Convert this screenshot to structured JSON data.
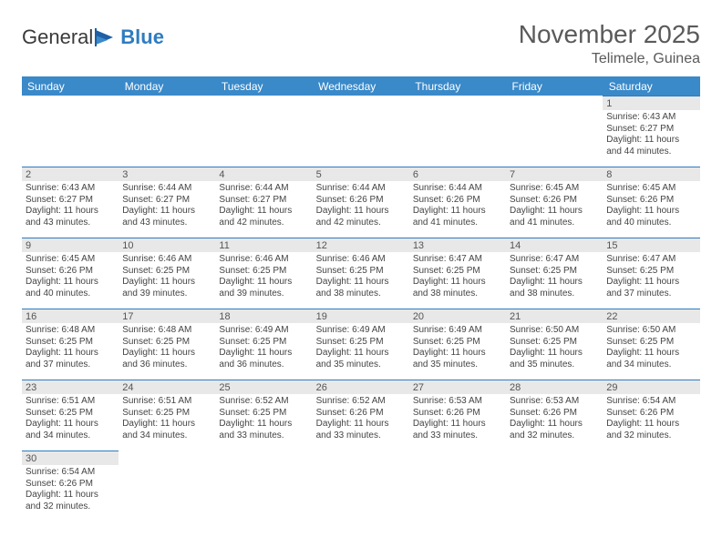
{
  "logo": {
    "word1": "General",
    "word2": "Blue"
  },
  "header": {
    "title": "November 2025",
    "location": "Telimele, Guinea"
  },
  "colors": {
    "header_bg": "#3a89c9",
    "header_text": "#ffffff",
    "daynum_bg": "#e8e8e8",
    "border": "#2f7cc0",
    "body_text": "#444444",
    "title_text": "#5a5a5a"
  },
  "weekdays": [
    "Sunday",
    "Monday",
    "Tuesday",
    "Wednesday",
    "Thursday",
    "Friday",
    "Saturday"
  ],
  "weeks": [
    [
      null,
      null,
      null,
      null,
      null,
      null,
      {
        "n": "1",
        "sr": "Sunrise: 6:43 AM",
        "ss": "Sunset: 6:27 PM",
        "dl1": "Daylight: 11 hours",
        "dl2": "and 44 minutes."
      }
    ],
    [
      {
        "n": "2",
        "sr": "Sunrise: 6:43 AM",
        "ss": "Sunset: 6:27 PM",
        "dl1": "Daylight: 11 hours",
        "dl2": "and 43 minutes."
      },
      {
        "n": "3",
        "sr": "Sunrise: 6:44 AM",
        "ss": "Sunset: 6:27 PM",
        "dl1": "Daylight: 11 hours",
        "dl2": "and 43 minutes."
      },
      {
        "n": "4",
        "sr": "Sunrise: 6:44 AM",
        "ss": "Sunset: 6:27 PM",
        "dl1": "Daylight: 11 hours",
        "dl2": "and 42 minutes."
      },
      {
        "n": "5",
        "sr": "Sunrise: 6:44 AM",
        "ss": "Sunset: 6:26 PM",
        "dl1": "Daylight: 11 hours",
        "dl2": "and 42 minutes."
      },
      {
        "n": "6",
        "sr": "Sunrise: 6:44 AM",
        "ss": "Sunset: 6:26 PM",
        "dl1": "Daylight: 11 hours",
        "dl2": "and 41 minutes."
      },
      {
        "n": "7",
        "sr": "Sunrise: 6:45 AM",
        "ss": "Sunset: 6:26 PM",
        "dl1": "Daylight: 11 hours",
        "dl2": "and 41 minutes."
      },
      {
        "n": "8",
        "sr": "Sunrise: 6:45 AM",
        "ss": "Sunset: 6:26 PM",
        "dl1": "Daylight: 11 hours",
        "dl2": "and 40 minutes."
      }
    ],
    [
      {
        "n": "9",
        "sr": "Sunrise: 6:45 AM",
        "ss": "Sunset: 6:26 PM",
        "dl1": "Daylight: 11 hours",
        "dl2": "and 40 minutes."
      },
      {
        "n": "10",
        "sr": "Sunrise: 6:46 AM",
        "ss": "Sunset: 6:25 PM",
        "dl1": "Daylight: 11 hours",
        "dl2": "and 39 minutes."
      },
      {
        "n": "11",
        "sr": "Sunrise: 6:46 AM",
        "ss": "Sunset: 6:25 PM",
        "dl1": "Daylight: 11 hours",
        "dl2": "and 39 minutes."
      },
      {
        "n": "12",
        "sr": "Sunrise: 6:46 AM",
        "ss": "Sunset: 6:25 PM",
        "dl1": "Daylight: 11 hours",
        "dl2": "and 38 minutes."
      },
      {
        "n": "13",
        "sr": "Sunrise: 6:47 AM",
        "ss": "Sunset: 6:25 PM",
        "dl1": "Daylight: 11 hours",
        "dl2": "and 38 minutes."
      },
      {
        "n": "14",
        "sr": "Sunrise: 6:47 AM",
        "ss": "Sunset: 6:25 PM",
        "dl1": "Daylight: 11 hours",
        "dl2": "and 38 minutes."
      },
      {
        "n": "15",
        "sr": "Sunrise: 6:47 AM",
        "ss": "Sunset: 6:25 PM",
        "dl1": "Daylight: 11 hours",
        "dl2": "and 37 minutes."
      }
    ],
    [
      {
        "n": "16",
        "sr": "Sunrise: 6:48 AM",
        "ss": "Sunset: 6:25 PM",
        "dl1": "Daylight: 11 hours",
        "dl2": "and 37 minutes."
      },
      {
        "n": "17",
        "sr": "Sunrise: 6:48 AM",
        "ss": "Sunset: 6:25 PM",
        "dl1": "Daylight: 11 hours",
        "dl2": "and 36 minutes."
      },
      {
        "n": "18",
        "sr": "Sunrise: 6:49 AM",
        "ss": "Sunset: 6:25 PM",
        "dl1": "Daylight: 11 hours",
        "dl2": "and 36 minutes."
      },
      {
        "n": "19",
        "sr": "Sunrise: 6:49 AM",
        "ss": "Sunset: 6:25 PM",
        "dl1": "Daylight: 11 hours",
        "dl2": "and 35 minutes."
      },
      {
        "n": "20",
        "sr": "Sunrise: 6:49 AM",
        "ss": "Sunset: 6:25 PM",
        "dl1": "Daylight: 11 hours",
        "dl2": "and 35 minutes."
      },
      {
        "n": "21",
        "sr": "Sunrise: 6:50 AM",
        "ss": "Sunset: 6:25 PM",
        "dl1": "Daylight: 11 hours",
        "dl2": "and 35 minutes."
      },
      {
        "n": "22",
        "sr": "Sunrise: 6:50 AM",
        "ss": "Sunset: 6:25 PM",
        "dl1": "Daylight: 11 hours",
        "dl2": "and 34 minutes."
      }
    ],
    [
      {
        "n": "23",
        "sr": "Sunrise: 6:51 AM",
        "ss": "Sunset: 6:25 PM",
        "dl1": "Daylight: 11 hours",
        "dl2": "and 34 minutes."
      },
      {
        "n": "24",
        "sr": "Sunrise: 6:51 AM",
        "ss": "Sunset: 6:25 PM",
        "dl1": "Daylight: 11 hours",
        "dl2": "and 34 minutes."
      },
      {
        "n": "25",
        "sr": "Sunrise: 6:52 AM",
        "ss": "Sunset: 6:25 PM",
        "dl1": "Daylight: 11 hours",
        "dl2": "and 33 minutes."
      },
      {
        "n": "26",
        "sr": "Sunrise: 6:52 AM",
        "ss": "Sunset: 6:26 PM",
        "dl1": "Daylight: 11 hours",
        "dl2": "and 33 minutes."
      },
      {
        "n": "27",
        "sr": "Sunrise: 6:53 AM",
        "ss": "Sunset: 6:26 PM",
        "dl1": "Daylight: 11 hours",
        "dl2": "and 33 minutes."
      },
      {
        "n": "28",
        "sr": "Sunrise: 6:53 AM",
        "ss": "Sunset: 6:26 PM",
        "dl1": "Daylight: 11 hours",
        "dl2": "and 32 minutes."
      },
      {
        "n": "29",
        "sr": "Sunrise: 6:54 AM",
        "ss": "Sunset: 6:26 PM",
        "dl1": "Daylight: 11 hours",
        "dl2": "and 32 minutes."
      }
    ],
    [
      {
        "n": "30",
        "sr": "Sunrise: 6:54 AM",
        "ss": "Sunset: 6:26 PM",
        "dl1": "Daylight: 11 hours",
        "dl2": "and 32 minutes."
      },
      null,
      null,
      null,
      null,
      null,
      null
    ]
  ]
}
